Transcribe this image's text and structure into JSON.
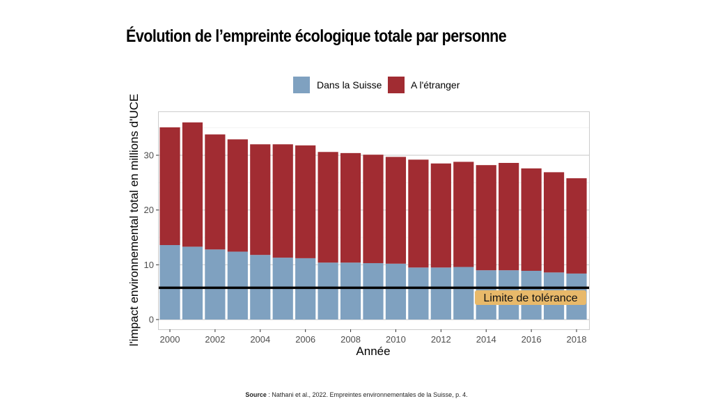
{
  "title": "Évolution de l’empreinte écologique totale par personne",
  "source": {
    "label": "Source",
    "text": " : Nathani et al., 2022. Empreintes environnementales de la Suisse, p. 4."
  },
  "chart_data": {
    "type": "bar",
    "stacked": true,
    "title": "Évolution de l’empreinte écologique totale par personne",
    "xlabel": "Année",
    "ylabel": "l'impact environnemental total en millions d'UCE",
    "ylim": [
      0,
      37.5
    ],
    "grid": true,
    "legend_position": "top",
    "categories": [
      2000,
      2001,
      2002,
      2003,
      2004,
      2005,
      2006,
      2007,
      2008,
      2009,
      2010,
      2011,
      2012,
      2013,
      2014,
      2015,
      2016,
      2017,
      2018
    ],
    "x_tick_labels": [
      "2000",
      "2002",
      "2004",
      "2006",
      "2008",
      "2010",
      "2012",
      "2014",
      "2016",
      "2018"
    ],
    "y_ticks": [
      0,
      10,
      20,
      30
    ],
    "y_tick_labels": [
      "0",
      "10",
      "20",
      "30"
    ],
    "series": [
      {
        "name": "Dans la Suisse",
        "color": "#7fa1c0",
        "values": [
          13.6,
          13.3,
          12.8,
          12.4,
          11.8,
          11.3,
          11.2,
          10.4,
          10.4,
          10.3,
          10.2,
          9.5,
          9.5,
          9.6,
          9.0,
          9.0,
          8.9,
          8.6,
          8.4
        ]
      },
      {
        "name": "A l'étranger",
        "color": "#a12c32",
        "values": [
          21.5,
          22.7,
          21.0,
          20.5,
          20.2,
          20.7,
          20.6,
          20.2,
          20.0,
          19.8,
          19.5,
          19.7,
          19.0,
          19.2,
          19.2,
          19.6,
          18.7,
          18.3,
          17.4
        ]
      }
    ],
    "annotations": [
      {
        "type": "hline",
        "y": 5.8,
        "color": "#000000",
        "label": "Limite de tolérance",
        "label_background": "#e8b96a"
      }
    ]
  }
}
